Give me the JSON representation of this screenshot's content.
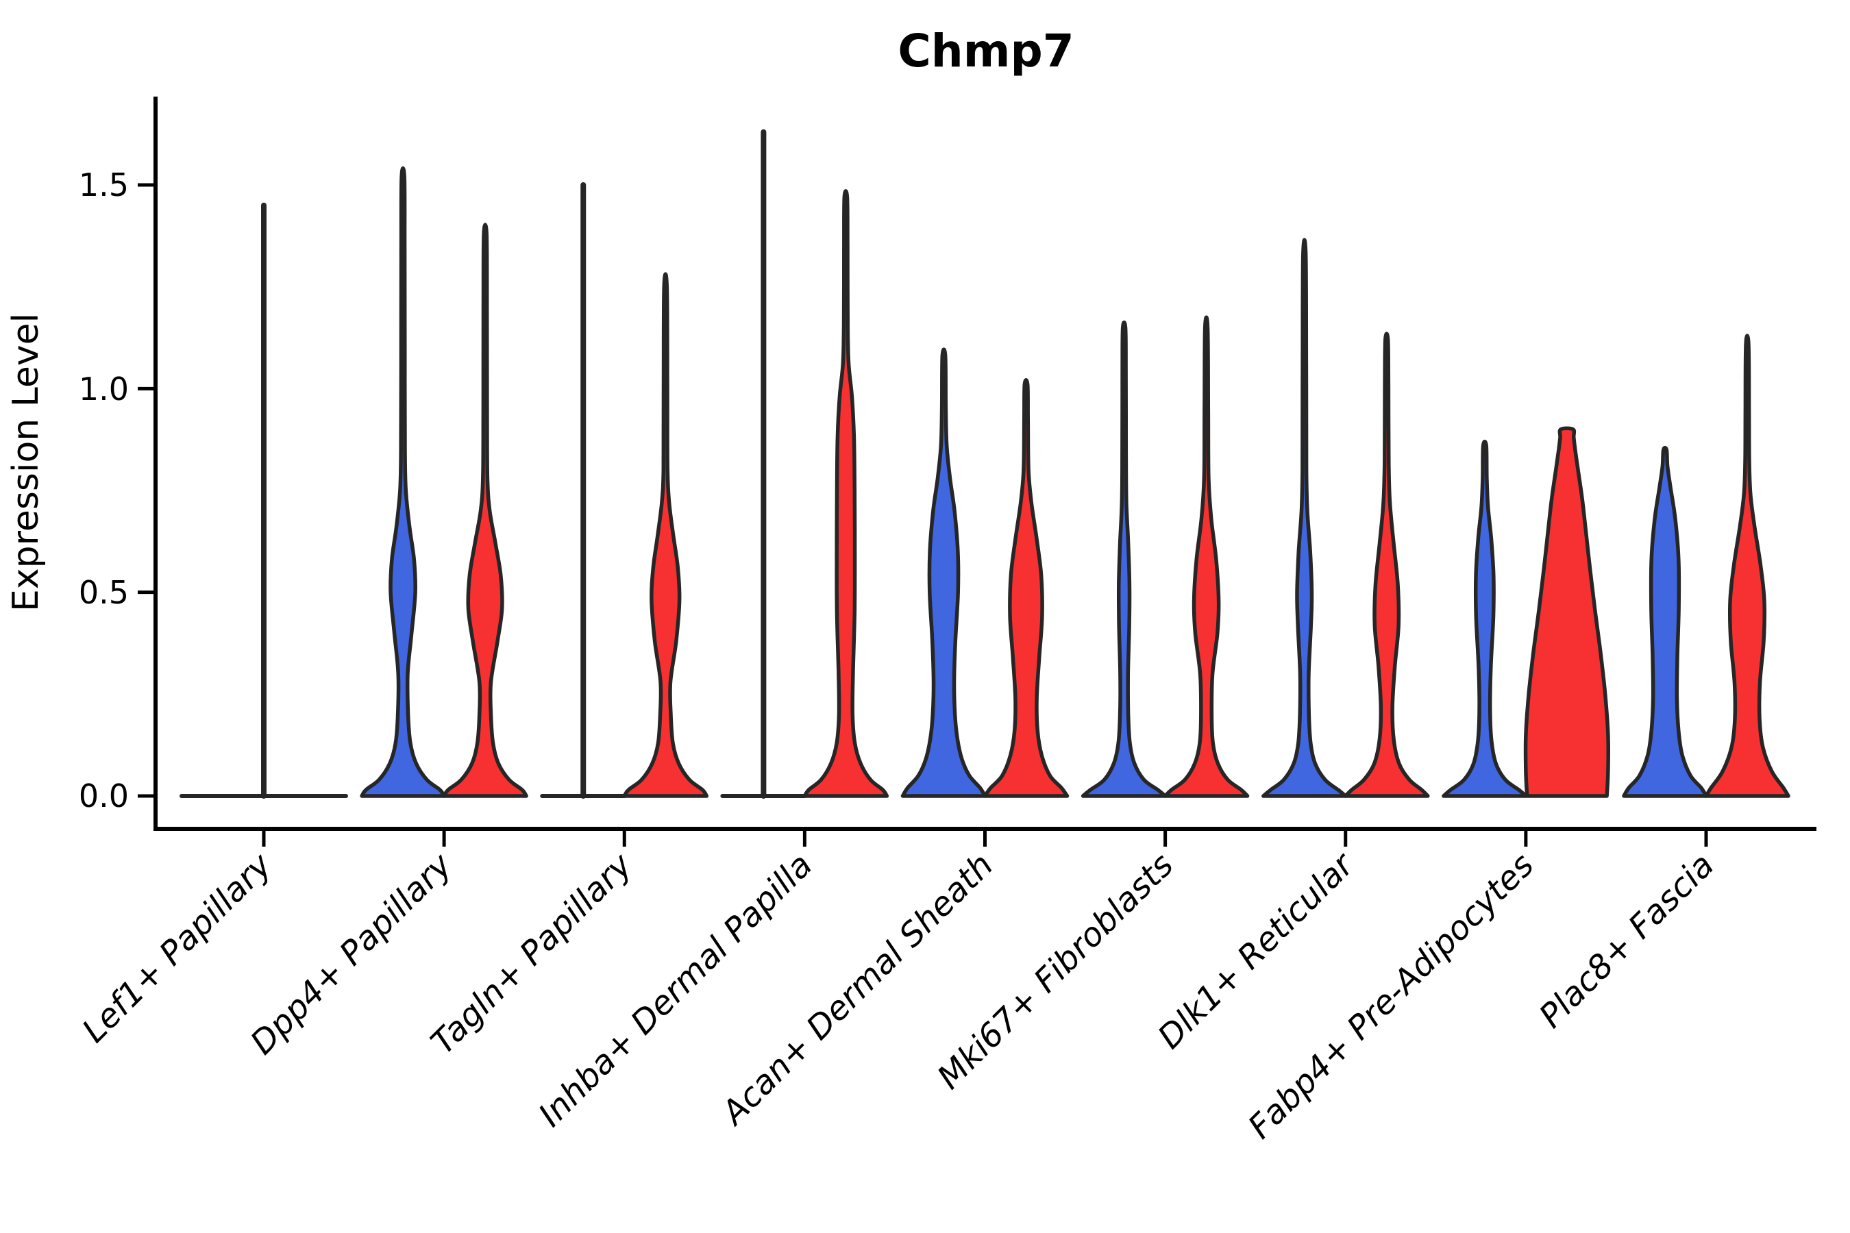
{
  "chart_data": {
    "type": "violin",
    "title": "Chmp7",
    "ylabel": "Expression Level",
    "ylim": [
      -0.08,
      1.72
    ],
    "grid": false,
    "legend": "none",
    "yticks": [
      {
        "label": "0.0",
        "value": 0.0
      },
      {
        "label": "0.5",
        "value": 0.5
      },
      {
        "label": "1.0",
        "value": 1.0
      },
      {
        "label": "1.5",
        "value": 1.5
      }
    ],
    "categories": [
      "Lef1+ Papillary",
      "Dpp4+ Papillary",
      "Tagln+ Papillary",
      "Inhba+ Dermal Papilla",
      "Acan+ Dermal Sheath",
      "Mki67+ Fibroblasts",
      "Dlk1+ Reticular",
      "Fabp4+ Pre-Adipocytes",
      "Plac8+ Fascia"
    ],
    "colors": {
      "blue": "#4066E0",
      "red": "#F73131",
      "edge": "#262626",
      "axis": "#000000"
    },
    "series": [
      {
        "category": "Lef1+ Papillary",
        "blue": {
          "shape": "flat",
          "max": 1.45,
          "width_mult": 2.0,
          "centered_on_tick": true
        },
        "red": {
          "shape": "none",
          "max": 0.0
        }
      },
      {
        "category": "Dpp4+ Papillary",
        "blue": {
          "shape": "density",
          "max": 1.52,
          "profile": [
            [
              0,
              1
            ],
            [
              0.015,
              0.9
            ],
            [
              0.04,
              0.58
            ],
            [
              0.08,
              0.32
            ],
            [
              0.13,
              0.18
            ],
            [
              0.2,
              0.125
            ],
            [
              0.3,
              0.115
            ],
            [
              0.4,
              0.21
            ],
            [
              0.5,
              0.3
            ],
            [
              0.58,
              0.27
            ],
            [
              0.66,
              0.16
            ],
            [
              0.75,
              0.07
            ],
            [
              0.85,
              0.048
            ],
            [
              1.1,
              0.044
            ],
            [
              1.35,
              0.042
            ],
            [
              1.52,
              0.034
            ]
          ]
        },
        "red": {
          "shape": "density",
          "max": 1.38,
          "profile": [
            [
              0,
              1
            ],
            [
              0.015,
              0.9
            ],
            [
              0.04,
              0.58
            ],
            [
              0.08,
              0.32
            ],
            [
              0.13,
              0.19
            ],
            [
              0.2,
              0.14
            ],
            [
              0.28,
              0.14
            ],
            [
              0.38,
              0.3
            ],
            [
              0.46,
              0.41
            ],
            [
              0.54,
              0.38
            ],
            [
              0.62,
              0.25
            ],
            [
              0.7,
              0.11
            ],
            [
              0.78,
              0.055
            ],
            [
              0.95,
              0.046
            ],
            [
              1.2,
              0.043
            ],
            [
              1.38,
              0.034
            ]
          ]
        }
      },
      {
        "category": "Tagln+ Papillary",
        "blue": {
          "shape": "flat",
          "max": 1.5,
          "width_mult": 1.0,
          "centered_on_tick": false
        },
        "red": {
          "shape": "density",
          "max": 1.25,
          "profile": [
            [
              0,
              1
            ],
            [
              0.015,
              0.9
            ],
            [
              0.04,
              0.58
            ],
            [
              0.08,
              0.32
            ],
            [
              0.13,
              0.18
            ],
            [
              0.2,
              0.13
            ],
            [
              0.28,
              0.12
            ],
            [
              0.38,
              0.26
            ],
            [
              0.48,
              0.34
            ],
            [
              0.56,
              0.3
            ],
            [
              0.64,
              0.19
            ],
            [
              0.72,
              0.09
            ],
            [
              0.8,
              0.05
            ],
            [
              1.0,
              0.045
            ],
            [
              1.25,
              0.034
            ]
          ]
        }
      },
      {
        "category": "Inhba+ Dermal Papilla",
        "blue": {
          "shape": "flat",
          "max": 1.63,
          "width_mult": 1.0,
          "centered_on_tick": false
        },
        "red": {
          "shape": "density",
          "max": 1.47,
          "profile": [
            [
              0,
              1
            ],
            [
              0.015,
              0.9
            ],
            [
              0.04,
              0.6
            ],
            [
              0.08,
              0.36
            ],
            [
              0.13,
              0.22
            ],
            [
              0.2,
              0.165
            ],
            [
              0.3,
              0.175
            ],
            [
              0.45,
              0.215
            ],
            [
              0.6,
              0.22
            ],
            [
              0.75,
              0.215
            ],
            [
              0.88,
              0.2
            ],
            [
              0.98,
              0.15
            ],
            [
              1.06,
              0.07
            ],
            [
              1.15,
              0.048
            ],
            [
              1.35,
              0.043
            ],
            [
              1.47,
              0.034
            ]
          ]
        }
      },
      {
        "category": "Acan+ Dermal Sheath",
        "blue": {
          "shape": "density",
          "max": 1.08,
          "profile": [
            [
              0,
              1
            ],
            [
              0.02,
              0.88
            ],
            [
              0.05,
              0.62
            ],
            [
              0.09,
              0.44
            ],
            [
              0.14,
              0.33
            ],
            [
              0.2,
              0.27
            ],
            [
              0.28,
              0.25
            ],
            [
              0.38,
              0.28
            ],
            [
              0.5,
              0.345
            ],
            [
              0.6,
              0.34
            ],
            [
              0.7,
              0.26
            ],
            [
              0.78,
              0.15
            ],
            [
              0.86,
              0.07
            ],
            [
              0.95,
              0.048
            ],
            [
              1.08,
              0.036
            ]
          ]
        },
        "red": {
          "shape": "density",
          "max": 1.01,
          "profile": [
            [
              0,
              1
            ],
            [
              0.02,
              0.86
            ],
            [
              0.05,
              0.58
            ],
            [
              0.1,
              0.38
            ],
            [
              0.16,
              0.28
            ],
            [
              0.24,
              0.26
            ],
            [
              0.34,
              0.32
            ],
            [
              0.44,
              0.39
            ],
            [
              0.54,
              0.37
            ],
            [
              0.63,
              0.26
            ],
            [
              0.72,
              0.13
            ],
            [
              0.8,
              0.06
            ],
            [
              0.92,
              0.046
            ],
            [
              1.01,
              0.036
            ]
          ]
        }
      },
      {
        "category": "Mki67+ Fibroblasts",
        "blue": {
          "shape": "density",
          "max": 1.15,
          "profile": [
            [
              0,
              1
            ],
            [
              0.015,
              0.82
            ],
            [
              0.04,
              0.48
            ],
            [
              0.08,
              0.25
            ],
            [
              0.13,
              0.14
            ],
            [
              0.2,
              0.1
            ],
            [
              0.3,
              0.095
            ],
            [
              0.42,
              0.125
            ],
            [
              0.52,
              0.13
            ],
            [
              0.62,
              0.1
            ],
            [
              0.72,
              0.055
            ],
            [
              0.85,
              0.045
            ],
            [
              1.05,
              0.042
            ],
            [
              1.15,
              0.032
            ]
          ]
        },
        "red": {
          "shape": "density",
          "max": 1.15,
          "profile": [
            [
              0,
              1
            ],
            [
              0.015,
              0.85
            ],
            [
              0.04,
              0.52
            ],
            [
              0.08,
              0.28
            ],
            [
              0.13,
              0.16
            ],
            [
              0.2,
              0.13
            ],
            [
              0.3,
              0.15
            ],
            [
              0.4,
              0.27
            ],
            [
              0.48,
              0.3
            ],
            [
              0.58,
              0.24
            ],
            [
              0.68,
              0.12
            ],
            [
              0.78,
              0.055
            ],
            [
              0.95,
              0.045
            ],
            [
              1.15,
              0.032
            ]
          ]
        }
      },
      {
        "category": "Dlk1+ Reticular",
        "blue": {
          "shape": "density",
          "max": 1.33,
          "profile": [
            [
              0,
              1
            ],
            [
              0.015,
              0.82
            ],
            [
              0.04,
              0.5
            ],
            [
              0.08,
              0.26
            ],
            [
              0.13,
              0.15
            ],
            [
              0.2,
              0.11
            ],
            [
              0.3,
              0.105
            ],
            [
              0.42,
              0.16
            ],
            [
              0.5,
              0.18
            ],
            [
              0.6,
              0.14
            ],
            [
              0.7,
              0.07
            ],
            [
              0.8,
              0.048
            ],
            [
              1.05,
              0.044
            ],
            [
              1.33,
              0.032
            ]
          ]
        },
        "red": {
          "shape": "density",
          "max": 1.12,
          "profile": [
            [
              0,
              1
            ],
            [
              0.015,
              0.85
            ],
            [
              0.04,
              0.55
            ],
            [
              0.08,
              0.3
            ],
            [
              0.14,
              0.17
            ],
            [
              0.22,
              0.14
            ],
            [
              0.32,
              0.2
            ],
            [
              0.42,
              0.29
            ],
            [
              0.52,
              0.27
            ],
            [
              0.62,
              0.17
            ],
            [
              0.72,
              0.08
            ],
            [
              0.82,
              0.05
            ],
            [
              1.0,
              0.044
            ],
            [
              1.12,
              0.032
            ]
          ]
        }
      },
      {
        "category": "Fabp4+ Pre-Adipocytes",
        "blue": {
          "shape": "density",
          "max": 0.86,
          "profile": [
            [
              0,
              1
            ],
            [
              0.015,
              0.83
            ],
            [
              0.04,
              0.5
            ],
            [
              0.08,
              0.27
            ],
            [
              0.14,
              0.16
            ],
            [
              0.22,
              0.13
            ],
            [
              0.32,
              0.15
            ],
            [
              0.44,
              0.21
            ],
            [
              0.54,
              0.215
            ],
            [
              0.63,
              0.16
            ],
            [
              0.71,
              0.08
            ],
            [
              0.78,
              0.05
            ],
            [
              0.86,
              0.038
            ]
          ]
        },
        "red": {
          "shape": "density",
          "max": 0.9,
          "truncated_top": true,
          "profile": [
            [
              0,
              0.97
            ],
            [
              0.06,
              1.0
            ],
            [
              0.15,
              1.0
            ],
            [
              0.25,
              0.93
            ],
            [
              0.35,
              0.82
            ],
            [
              0.45,
              0.69
            ],
            [
              0.55,
              0.57
            ],
            [
              0.65,
              0.46
            ],
            [
              0.73,
              0.37
            ],
            [
              0.8,
              0.27
            ],
            [
              0.85,
              0.2
            ],
            [
              0.88,
              0.165
            ],
            [
              0.9,
              0.15
            ]
          ]
        }
      },
      {
        "category": "Plac8+ Fascia",
        "blue": {
          "shape": "density",
          "max": 0.85,
          "profile": [
            [
              0,
              1
            ],
            [
              0.02,
              0.88
            ],
            [
              0.05,
              0.62
            ],
            [
              0.1,
              0.42
            ],
            [
              0.16,
              0.33
            ],
            [
              0.24,
              0.29
            ],
            [
              0.34,
              0.3
            ],
            [
              0.46,
              0.335
            ],
            [
              0.58,
              0.33
            ],
            [
              0.68,
              0.25
            ],
            [
              0.76,
              0.13
            ],
            [
              0.81,
              0.06
            ],
            [
              0.85,
              0.038
            ]
          ]
        },
        "red": {
          "shape": "density",
          "max": 1.11,
          "profile": [
            [
              0,
              1
            ],
            [
              0.02,
              0.88
            ],
            [
              0.06,
              0.6
            ],
            [
              0.12,
              0.38
            ],
            [
              0.19,
              0.3
            ],
            [
              0.28,
              0.31
            ],
            [
              0.38,
              0.4
            ],
            [
              0.48,
              0.415
            ],
            [
              0.57,
              0.32
            ],
            [
              0.66,
              0.18
            ],
            [
              0.74,
              0.08
            ],
            [
              0.82,
              0.05
            ],
            [
              0.95,
              0.044
            ],
            [
              1.11,
              0.032
            ]
          ]
        }
      }
    ]
  }
}
